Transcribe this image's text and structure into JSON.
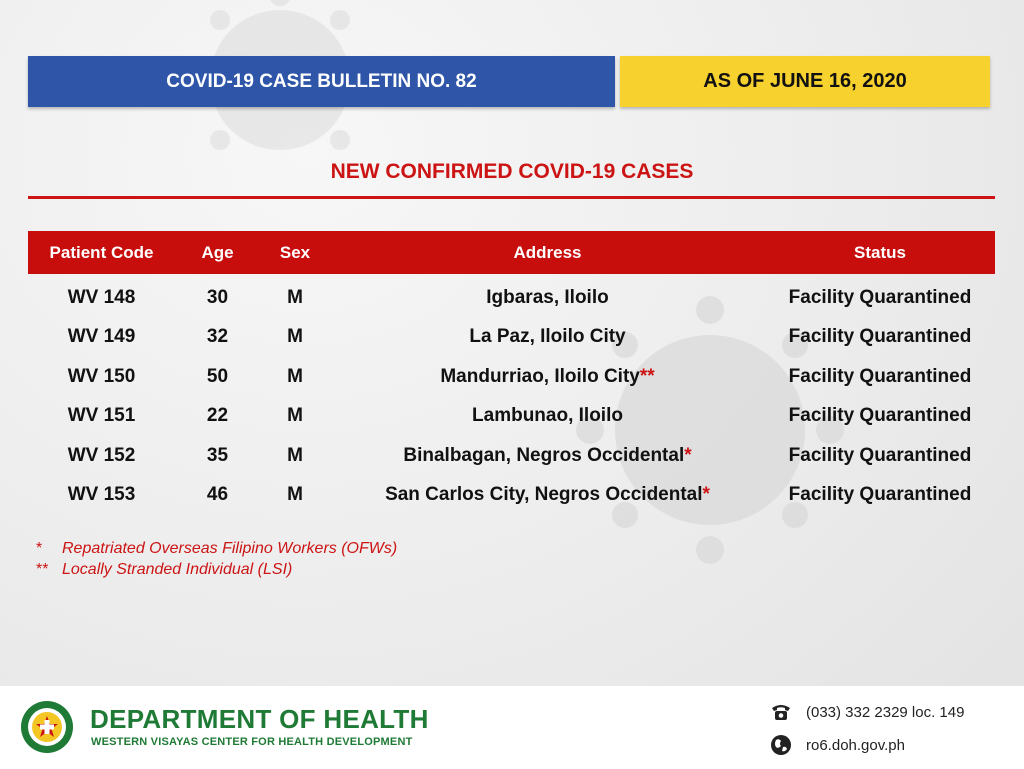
{
  "header": {
    "bulletin": "COVID-19 CASE BULLETIN NO. 82",
    "as_of": "AS OF JUNE 16, 2020"
  },
  "section_title": "NEW CONFIRMED COVID-19 CASES",
  "table": {
    "columns": [
      "Patient Code",
      "Age",
      "Sex",
      "Address",
      "Status"
    ],
    "rows": [
      {
        "code": "WV 148",
        "age": "30",
        "sex": "M",
        "address": "Igbaras, Iloilo",
        "mark": "",
        "status": "Facility Quarantined"
      },
      {
        "code": "WV 149",
        "age": "32",
        "sex": "M",
        "address": "La Paz, Iloilo City",
        "mark": "",
        "status": "Facility Quarantined"
      },
      {
        "code": "WV 150",
        "age": "50",
        "sex": "M",
        "address": "Mandurriao, Iloilo City",
        "mark": "**",
        "status": "Facility Quarantined"
      },
      {
        "code": "WV 151",
        "age": "22",
        "sex": "M",
        "address": "Lambunao, Iloilo",
        "mark": "",
        "status": "Facility Quarantined"
      },
      {
        "code": "WV 152",
        "age": "35",
        "sex": "M",
        "address": "Binalbagan, Negros Occidental",
        "mark": "*",
        "status": "Facility Quarantined"
      },
      {
        "code": "WV 153",
        "age": "46",
        "sex": "M",
        "address": "San Carlos City, Negros Occidental",
        "mark": "*",
        "status": "Facility Quarantined"
      }
    ]
  },
  "notes": [
    {
      "mark": "*",
      "text": "Repatriated Overseas Filipino Workers (OFWs)"
    },
    {
      "mark": "**",
      "text": "Locally Stranded Individual (LSI)"
    }
  ],
  "footer": {
    "org": "DEPARTMENT OF HEALTH",
    "suborg": "WESTERN VISAYAS CENTER FOR HEALTH DEVELOPMENT",
    "phone": "(033) 332 2329 loc. 149",
    "website": "ro6.doh.gov.ph",
    "phone_icon": "telephone-icon",
    "web_icon": "globe-icon"
  },
  "colors": {
    "blue": "#2e55a8",
    "yellow": "#f7d12e",
    "red": "#cc1414",
    "green": "#1f7a35"
  }
}
